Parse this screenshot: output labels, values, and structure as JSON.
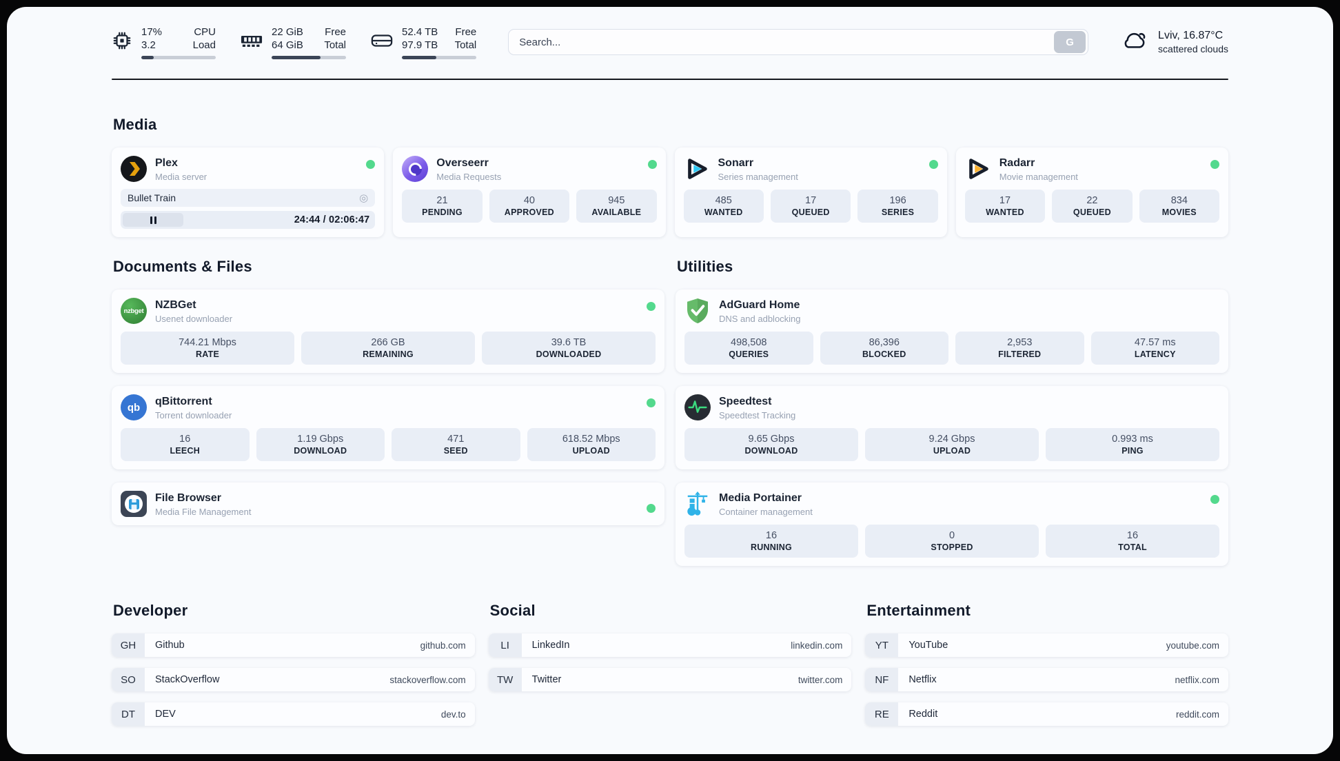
{
  "colors": {
    "status_online_green": "#53d98d",
    "plex_amber": "#e5a00d",
    "sonarr_cyan": "#2fc9f5",
    "radarr_yellow": "#fbb12f",
    "adguard_green": "#66bb6a",
    "qbittorrent_blue": "#3575d3",
    "nzbget_green": "#3d8d40",
    "portainer_blue": "#2fb3e8",
    "speedtest_pulse_green": "#3bdb7f",
    "page_background": "#f8fafd",
    "stat_box_background": "#e9eef6"
  },
  "header": {
    "system_stats": [
      {
        "icon": "cpu-icon",
        "values": [
          "17%",
          "3.2"
        ],
        "labels": [
          "CPU",
          "Load"
        ],
        "progress_percent": 17
      },
      {
        "icon": "memory-icon",
        "values": [
          "22 GiB",
          "64 GiB"
        ],
        "labels": [
          "Free",
          "Total"
        ],
        "progress_percent": 66
      },
      {
        "icon": "hard-drive-icon",
        "values": [
          "52.4 TB",
          "97.9 TB"
        ],
        "labels": [
          "Free",
          "Total"
        ],
        "progress_percent": 46
      }
    ],
    "search": {
      "placeholder": "Search...",
      "button_label": "G"
    },
    "weather": {
      "summary": "Lviv, 16.87°C",
      "condition": "scattered clouds"
    }
  },
  "sections": {
    "media": {
      "title": "Media"
    },
    "documents": {
      "title": "Documents & Files"
    },
    "utilities": {
      "title": "Utilities"
    },
    "developer": {
      "title": "Developer"
    },
    "social": {
      "title": "Social"
    },
    "entertainment": {
      "title": "Entertainment"
    }
  },
  "apps": {
    "plex": {
      "name": "Plex",
      "description": "Media server",
      "status": "online",
      "now_playing": "Bullet Train",
      "time_display": "24:44 / 02:06:47"
    },
    "overseerr": {
      "name": "Overseerr",
      "description": "Media Requests",
      "status": "online",
      "stats": [
        {
          "value": "21",
          "label": "PENDING"
        },
        {
          "value": "40",
          "label": "APPROVED"
        },
        {
          "value": "945",
          "label": "AVAILABLE"
        }
      ]
    },
    "sonarr": {
      "name": "Sonarr",
      "description": "Series management",
      "status": "online",
      "stats": [
        {
          "value": "485",
          "label": "WANTED"
        },
        {
          "value": "17",
          "label": "QUEUED"
        },
        {
          "value": "196",
          "label": "SERIES"
        }
      ]
    },
    "radarr": {
      "name": "Radarr",
      "description": "Movie management",
      "status": "online",
      "stats": [
        {
          "value": "17",
          "label": "WANTED"
        },
        {
          "value": "22",
          "label": "QUEUED"
        },
        {
          "value": "834",
          "label": "MOVIES"
        }
      ]
    },
    "nzbget": {
      "name": "NZBGet",
      "description": "Usenet downloader",
      "status": "online",
      "icon_text": "nzbget",
      "stats": [
        {
          "value": "744.21 Mbps",
          "label": "RATE"
        },
        {
          "value": "266 GB",
          "label": "REMAINING"
        },
        {
          "value": "39.6 TB",
          "label": "DOWNLOADED"
        }
      ]
    },
    "qbittorrent": {
      "name": "qBittorrent",
      "description": "Torrent downloader",
      "status": "online",
      "icon_text": "qb",
      "stats": [
        {
          "value": "16",
          "label": "LEECH"
        },
        {
          "value": "1.19 Gbps",
          "label": "DOWNLOAD"
        },
        {
          "value": "471",
          "label": "SEED"
        },
        {
          "value": "618.52 Mbps",
          "label": "UPLOAD"
        }
      ]
    },
    "filebrowser": {
      "name": "File Browser",
      "description": "Media File Management",
      "status": "online"
    },
    "adguard": {
      "name": "AdGuard Home",
      "description": "DNS and adblocking",
      "stats": [
        {
          "value": "498,508",
          "label": "QUERIES"
        },
        {
          "value": "86,396",
          "label": "BLOCKED"
        },
        {
          "value": "2,953",
          "label": "FILTERED"
        },
        {
          "value": "47.57 ms",
          "label": "LATENCY"
        }
      ]
    },
    "speedtest": {
      "name": "Speedtest",
      "description": "Speedtest Tracking",
      "stats": [
        {
          "value": "9.65 Gbps",
          "label": "DOWNLOAD"
        },
        {
          "value": "9.24 Gbps",
          "label": "UPLOAD"
        },
        {
          "value": "0.993 ms",
          "label": "PING"
        }
      ]
    },
    "portainer": {
      "name": "Media Portainer",
      "description": "Container management",
      "status": "online",
      "stats": [
        {
          "value": "16",
          "label": "RUNNING"
        },
        {
          "value": "0",
          "label": "STOPPED"
        },
        {
          "value": "16",
          "label": "TOTAL"
        }
      ]
    }
  },
  "links": {
    "developer": [
      {
        "abbr": "GH",
        "name": "Github",
        "url": "github.com"
      },
      {
        "abbr": "SO",
        "name": "StackOverflow",
        "url": "stackoverflow.com"
      },
      {
        "abbr": "DT",
        "name": "DEV",
        "url": "dev.to"
      }
    ],
    "social": [
      {
        "abbr": "LI",
        "name": "LinkedIn",
        "url": "linkedin.com"
      },
      {
        "abbr": "TW",
        "name": "Twitter",
        "url": "twitter.com"
      }
    ],
    "entertainment": [
      {
        "abbr": "YT",
        "name": "YouTube",
        "url": "youtube.com"
      },
      {
        "abbr": "NF",
        "name": "Netflix",
        "url": "netflix.com"
      },
      {
        "abbr": "RE",
        "name": "Reddit",
        "url": "reddit.com"
      }
    ]
  }
}
